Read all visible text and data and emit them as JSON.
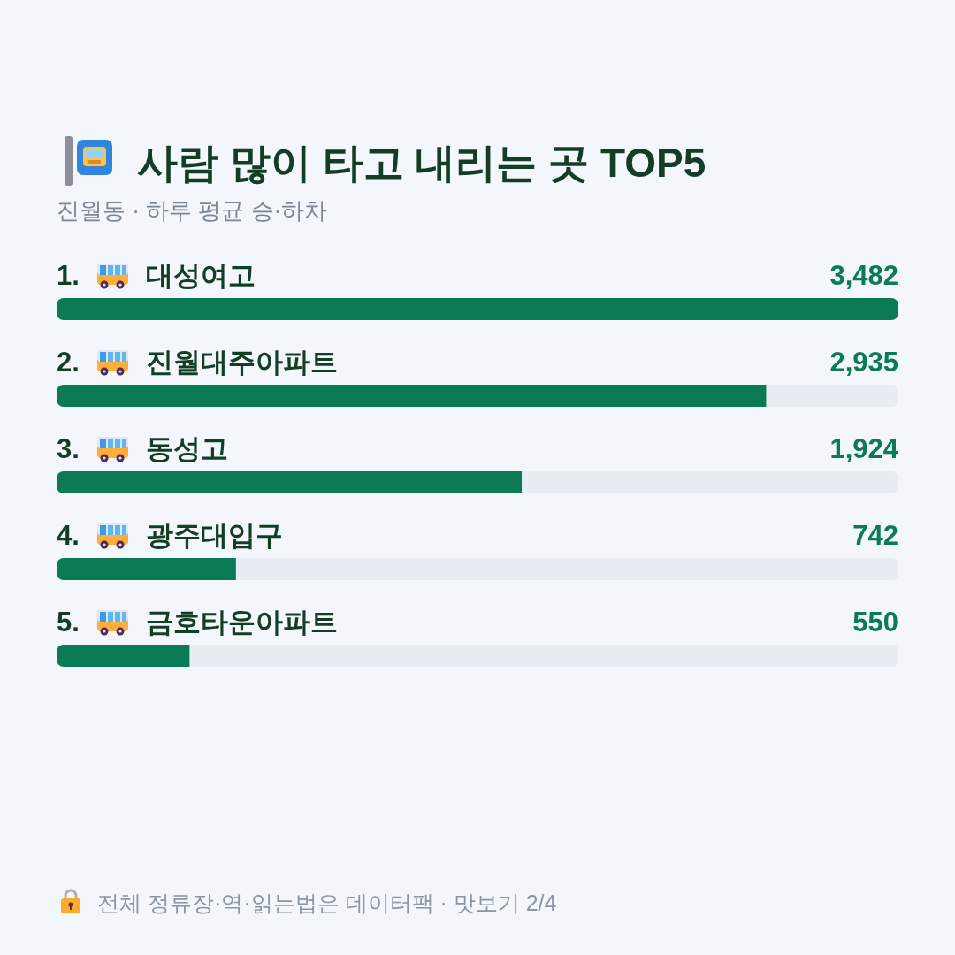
{
  "chart_data": {
    "type": "bar",
    "orientation": "horizontal",
    "title": "사람 많이 타고 내리는 곳 TOP5",
    "subtitle": "진월동 · 하루 평균 승·하차",
    "categories": [
      "1. 대성여고",
      "2. 진월대주아파트",
      "3. 동성고",
      "4. 광주대입구",
      "5. 금호타운아파트"
    ],
    "values": [
      3482,
      2935,
      1924,
      742,
      550
    ],
    "value_labels": [
      "3,482",
      "2,935",
      "1,924",
      "742",
      "550"
    ],
    "color": "#0b7b55",
    "xlim": [
      0,
      3482
    ],
    "annotations": [
      "전체 정류장·역·읽는법은 데이터팩 · 맛보기 2/4"
    ]
  }
}
